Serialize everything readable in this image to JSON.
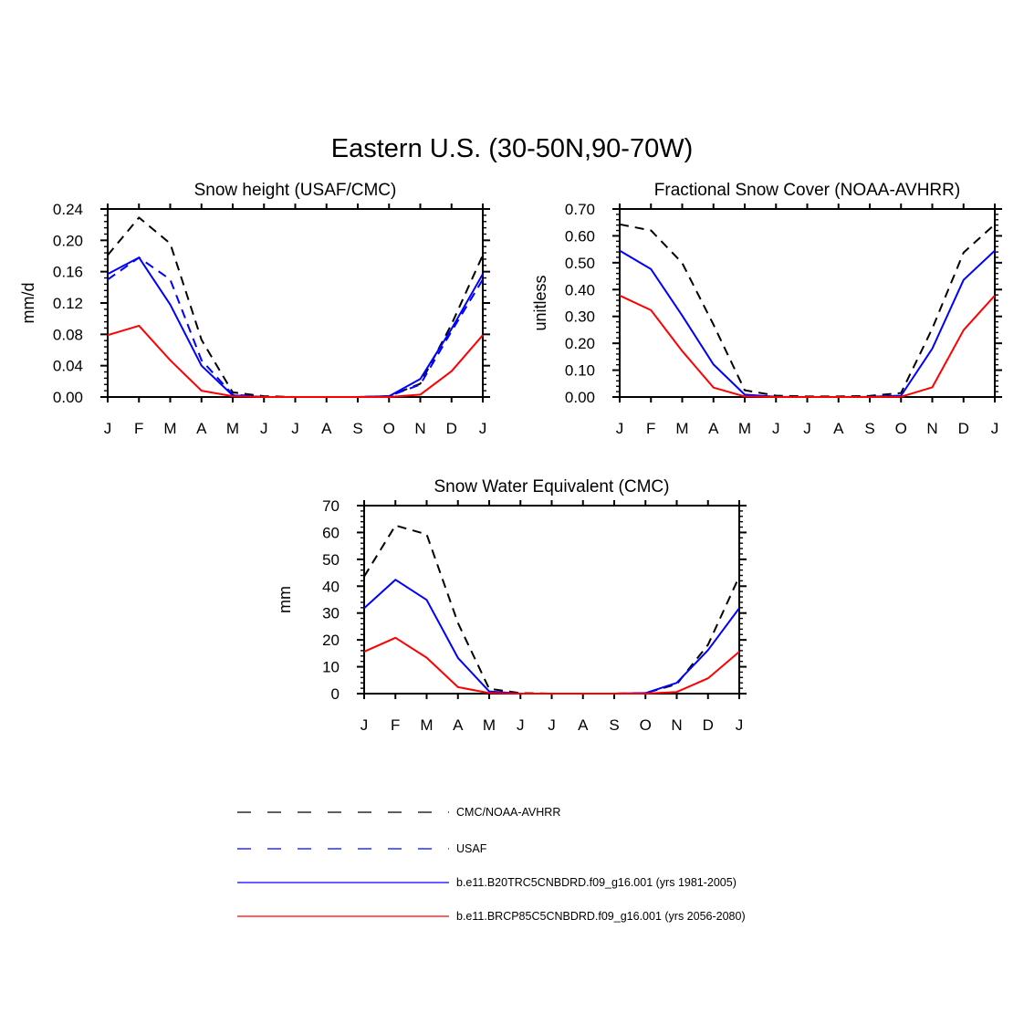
{
  "figure_title": "Eastern U.S. (30-50N,90-70W)",
  "chart_data": [
    {
      "type": "line",
      "title": "Snow height (USAF/CMC)",
      "xlabel": "",
      "ylabel": "mm/d",
      "x": [
        "J",
        "F",
        "M",
        "A",
        "M",
        "J",
        "J",
        "A",
        "S",
        "O",
        "N",
        "D",
        "J"
      ],
      "ylim": [
        0,
        0.24
      ],
      "yticks": [
        "0.00",
        "0.04",
        "0.08",
        "0.12",
        "0.16",
        "0.20",
        "0.24"
      ],
      "series": [
        {
          "name": "CMC/NOAA-AVHRR",
          "color": "#000000",
          "dash": true,
          "values": [
            0.181,
            0.229,
            0.196,
            0.073,
            0.006,
            0.001,
            0.0,
            0.0,
            0.0,
            0.001,
            0.017,
            0.093,
            0.181
          ]
        },
        {
          "name": "USAF",
          "color": "#0000ff",
          "dash": true,
          "values": [
            0.15,
            0.178,
            0.15,
            0.047,
            0.003,
            0.0,
            0.0,
            0.0,
            0.0,
            0.001,
            0.016,
            0.084,
            0.15
          ]
        },
        {
          "name": "b.e11.B20TRC5CNBDRD.f09_g16.001 (yrs 1981-2005)",
          "color": "#0000ff",
          "dash": false,
          "values": [
            0.157,
            0.178,
            0.118,
            0.04,
            0.002,
            0.0,
            0.0,
            0.0,
            0.0,
            0.001,
            0.023,
            0.087,
            0.157
          ]
        },
        {
          "name": "b.e11.BRCP85C5CNBDRD.f09_g16.001 (yrs 2056-2080)",
          "color": "#ff0000",
          "dash": false,
          "values": [
            0.079,
            0.091,
            0.047,
            0.008,
            0.001,
            0.0,
            0.0,
            0.0,
            0.0,
            0.0,
            0.003,
            0.033,
            0.079
          ]
        }
      ]
    },
    {
      "type": "line",
      "title": "Fractional Snow Cover (NOAA-AVHRR)",
      "xlabel": "",
      "ylabel": "unitless",
      "x": [
        "J",
        "F",
        "M",
        "A",
        "M",
        "J",
        "J",
        "A",
        "S",
        "O",
        "N",
        "D",
        "J"
      ],
      "ylim": [
        0,
        0.7
      ],
      "yticks": [
        "0.00",
        "0.10",
        "0.20",
        "0.30",
        "0.40",
        "0.50",
        "0.60",
        "0.70"
      ],
      "series": [
        {
          "name": "CMC/NOAA-AVHRR",
          "color": "#000000",
          "dash": true,
          "values": [
            0.643,
            0.62,
            0.499,
            0.269,
            0.025,
            0.005,
            0.002,
            0.002,
            0.004,
            0.015,
            0.255,
            0.538,
            0.643
          ]
        },
        {
          "name": "b.e11.B20TRC5CNBDRD.f09_g16.001 (yrs 1981-2005)",
          "color": "#0000ff",
          "dash": false,
          "values": [
            0.545,
            0.476,
            0.303,
            0.121,
            0.009,
            0.001,
            0.0,
            0.0,
            0.001,
            0.005,
            0.18,
            0.436,
            0.545
          ]
        },
        {
          "name": "b.e11.BRCP85C5CNBDRD.f09_g16.001 (yrs 2056-2080)",
          "color": "#ff0000",
          "dash": false,
          "values": [
            0.378,
            0.323,
            0.171,
            0.035,
            0.002,
            0.0,
            0.0,
            0.0,
            0.0,
            0.001,
            0.036,
            0.249,
            0.378
          ]
        }
      ]
    },
    {
      "type": "line",
      "title": "Snow Water Equivalent (CMC)",
      "xlabel": "",
      "ylabel": "mm",
      "x": [
        "J",
        "F",
        "M",
        "A",
        "M",
        "J",
        "J",
        "A",
        "S",
        "O",
        "N",
        "D",
        "J"
      ],
      "ylim": [
        0,
        70
      ],
      "yticks": [
        "0",
        "10",
        "20",
        "30",
        "40",
        "50",
        "60",
        "70"
      ],
      "series": [
        {
          "name": "CMC/NOAA-AVHRR",
          "color": "#000000",
          "dash": true,
          "values": [
            43.6,
            62.6,
            59.3,
            26.3,
            1.8,
            0.2,
            0.0,
            0.0,
            0.0,
            0.2,
            3.5,
            18.2,
            43.6
          ]
        },
        {
          "name": "b.e11.B20TRC5CNBDRD.f09_g16.001 (yrs 1981-2005)",
          "color": "#0000ff",
          "dash": false,
          "values": [
            31.8,
            42.4,
            34.9,
            13.3,
            0.8,
            0.0,
            0.0,
            0.0,
            0.0,
            0.2,
            4.0,
            16.2,
            31.8
          ]
        },
        {
          "name": "b.e11.BRCP85C5CNBDRD.f09_g16.001 (yrs 2056-2080)",
          "color": "#ff0000",
          "dash": false,
          "values": [
            15.6,
            20.8,
            13.4,
            2.4,
            0.2,
            0.0,
            0.0,
            0.0,
            0.0,
            0.0,
            0.6,
            5.7,
            15.6
          ]
        }
      ]
    }
  ],
  "legend": [
    {
      "label": "CMC/NOAA-AVHRR",
      "color": "#000000",
      "dash": true
    },
    {
      "label": "USAF",
      "color": "#0000ff",
      "dash": true
    },
    {
      "label": "b.e11.B20TRC5CNBDRD.f09_g16.001 (yrs 1981-2005)",
      "color": "#0000ff",
      "dash": false
    },
    {
      "label": "b.e11.BRCP85C5CNBDRD.f09_g16.001 (yrs 2056-2080)",
      "color": "#ff0000",
      "dash": false
    }
  ]
}
